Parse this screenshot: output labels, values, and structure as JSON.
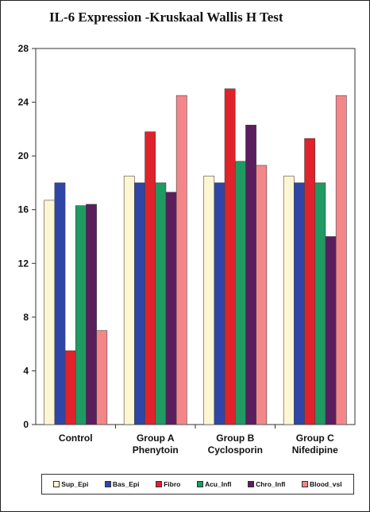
{
  "chart_data": {
    "type": "bar",
    "title": "IL-6 Expression -Kruskaal Wallis H Test",
    "categories": [
      [
        "Control"
      ],
      [
        "Group A",
        "Phenytoin"
      ],
      [
        "Group B",
        "Cyclosporin"
      ],
      [
        "Group C",
        "Nifedipine"
      ]
    ],
    "series": [
      {
        "name": "Sup_Epi",
        "color": "#fdf6d2",
        "values": [
          16.7,
          18.5,
          18.5,
          18.5
        ]
      },
      {
        "name": "Bas_Epi",
        "color": "#2f46a8",
        "values": [
          18.0,
          18.0,
          18.0,
          18.0
        ]
      },
      {
        "name": "Fibro",
        "color": "#e0222a",
        "values": [
          5.5,
          21.8,
          25.0,
          21.3
        ]
      },
      {
        "name": "Acu_Infl",
        "color": "#1f9a62",
        "values": [
          16.3,
          18.0,
          19.6,
          18.0
        ]
      },
      {
        "name": "Chro_Infl",
        "color": "#5a1e5e",
        "values": [
          16.4,
          17.3,
          22.3,
          14.0
        ]
      },
      {
        "name": "Blood_vsl",
        "color": "#f4868a",
        "values": [
          7.0,
          24.5,
          19.3,
          24.5
        ]
      }
    ],
    "ylim": [
      0,
      28
    ],
    "yticks": [
      0,
      4,
      8,
      12,
      16,
      20,
      24,
      28
    ],
    "xlabel": "",
    "ylabel": "",
    "grid": false,
    "legend_position": "bottom"
  }
}
